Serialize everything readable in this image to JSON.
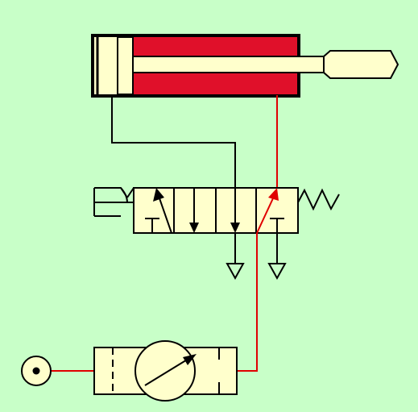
{
  "diagram": {
    "kind": "pneumatic-circuit",
    "components": [
      {
        "id": "cylinder",
        "type": "double-acting-cylinder",
        "state": "rod-extended"
      },
      {
        "id": "valve",
        "type": "4-way-2-position-directional-valve",
        "actuation": "push-button",
        "return": "spring"
      },
      {
        "id": "frl",
        "type": "filter-regulator-gauge-unit"
      },
      {
        "id": "supply",
        "type": "pressure-source"
      },
      {
        "id": "exhaust-1",
        "type": "exhaust"
      },
      {
        "id": "exhaust-2",
        "type": "exhaust"
      }
    ],
    "lines": [
      {
        "id": "supply-line",
        "pressurized": true
      },
      {
        "id": "cap-end-line",
        "pressurized": false
      },
      {
        "id": "rod-end-line",
        "pressurized": true
      }
    ]
  },
  "colors": {
    "background": "#c8ffc8",
    "component_fill": "#ffffcc",
    "cylinder_pressure": "#e0102a",
    "pressure_line": "#e00000",
    "exhaust_line": "#000000",
    "outline": "#000000"
  }
}
